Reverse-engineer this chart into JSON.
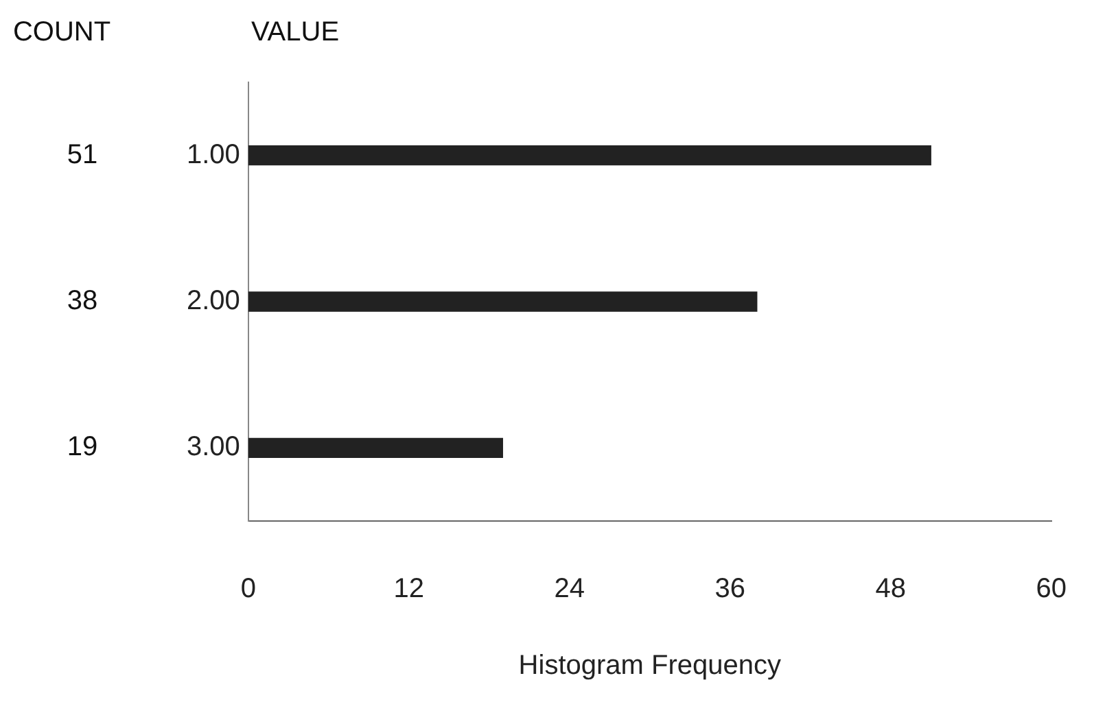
{
  "chart_data": {
    "type": "bar",
    "orientation": "horizontal",
    "categories": [
      "1.00",
      "2.00",
      "3.00"
    ],
    "values": [
      51,
      38,
      19
    ],
    "color": "#222222",
    "xlim": [
      0,
      60
    ],
    "xticks": [
      0,
      12,
      24,
      36,
      48,
      60
    ],
    "xlabel": "Histogram Frequency",
    "data_labels": true,
    "grid": false,
    "legend": false,
    "annotations": [
      "COUNT",
      "VALUE"
    ]
  }
}
